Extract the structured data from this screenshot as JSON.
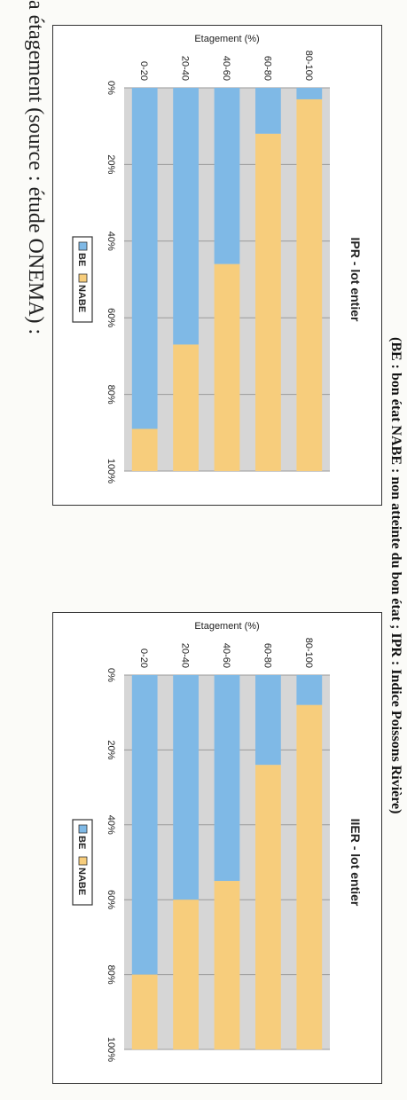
{
  "header_caption": "a étagement (source : étude ONEMA) :",
  "footer_caption": "(BE : bon état NABE : non atteinte du bon état ; IPR : Indice Poissons Rivière)",
  "colors": {
    "be": "#7fb9e6",
    "nabe": "#f7cd7c",
    "plot_bg": "#d6d6d6",
    "grid": "#9a9a9a"
  },
  "chart_data": [
    {
      "type": "bar",
      "orientation": "horizontal-stacked-100",
      "title": "IPR - lot entier",
      "ylabel": "Etagement (%)",
      "xlabel": "",
      "categories": [
        "80-100",
        "60-80",
        "40-60",
        "20-40",
        "0-20"
      ],
      "x_ticks": [
        "0%",
        "20%",
        "40%",
        "60%",
        "80%",
        "100%"
      ],
      "xlim": [
        0,
        100
      ],
      "grid": true,
      "legend_position": "bottom",
      "series": [
        {
          "name": "BE",
          "values": [
            3,
            12,
            46,
            67,
            89
          ]
        },
        {
          "name": "NABE",
          "values": [
            97,
            88,
            54,
            33,
            11
          ]
        }
      ]
    },
    {
      "type": "bar",
      "orientation": "horizontal-stacked-100",
      "title": "IIER - lot entier",
      "ylabel": "Etagement (%)",
      "xlabel": "",
      "categories": [
        "80-100",
        "60-80",
        "40-60",
        "20-40",
        "0-20"
      ],
      "x_ticks": [
        "0%",
        "20%",
        "40%",
        "60%",
        "80%",
        "100%"
      ],
      "xlim": [
        0,
        100
      ],
      "grid": true,
      "legend_position": "bottom",
      "series": [
        {
          "name": "BE",
          "values": [
            8,
            24,
            55,
            60,
            80
          ]
        },
        {
          "name": "NABE",
          "values": [
            92,
            76,
            45,
            40,
            20
          ]
        }
      ]
    }
  ]
}
